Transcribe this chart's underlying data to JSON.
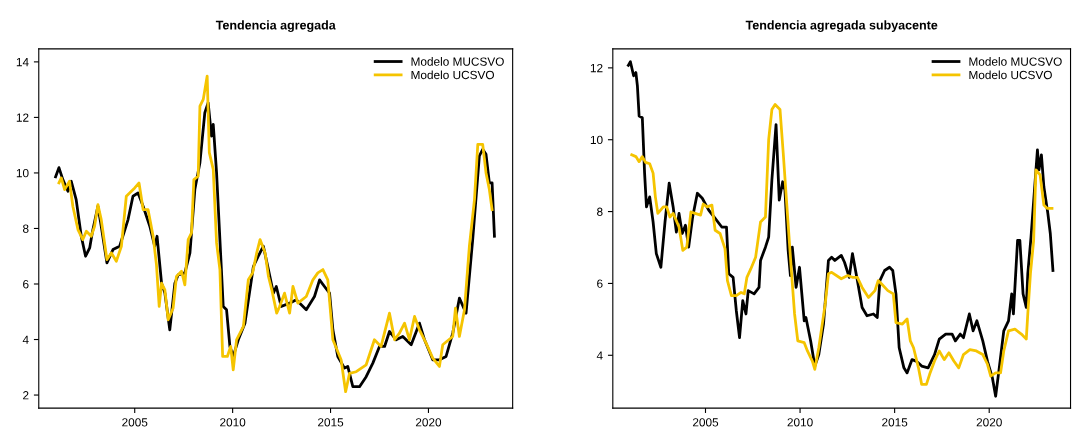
{
  "chart_data": [
    {
      "type": "line",
      "title": "Tendencia agregada",
      "xlim": [
        2000.1,
        2024.3
      ],
      "xticks": [
        2005,
        2010,
        2015,
        2020
      ],
      "ylim": [
        1.53,
        14.47
      ],
      "yticks": [
        2,
        4,
        6,
        8,
        10,
        12,
        14
      ],
      "grid": false,
      "legend": "top right",
      "series": [
        {
          "name": "Modelo MUCSVO",
          "color": "#000000",
          "x": [
            2000.96,
            2001.13,
            2001.33,
            2001.59,
            2001.76,
            2002.01,
            2002.27,
            2002.49,
            2002.7,
            2002.83,
            2003.12,
            2003.29,
            2003.58,
            2003.89,
            2004.23,
            2004.66,
            2004.91,
            2005.17,
            2005.43,
            2005.77,
            2006.02,
            2006.14,
            2006.37,
            2006.54,
            2006.79,
            2007.05,
            2007.22,
            2007.56,
            2007.82,
            2008.07,
            2008.33,
            2008.58,
            2008.75,
            2008.92,
            2009.01,
            2009.18,
            2009.35,
            2009.52,
            2009.69,
            2009.86,
            2010.03,
            2010.29,
            2010.63,
            2011.06,
            2011.31,
            2011.57,
            2011.83,
            2012.08,
            2012.23,
            2012.48,
            2012.91,
            2013.25,
            2013.76,
            2014.18,
            2014.44,
            2014.69,
            2014.95,
            2015.12,
            2015.37,
            2015.71,
            2015.88,
            2016.14,
            2016.48,
            2016.82,
            2017.16,
            2017.5,
            2017.76,
            2018.01,
            2018.35,
            2018.69,
            2019.12,
            2019.54,
            2019.8,
            2020.22,
            2020.56,
            2020.9,
            2021.24,
            2021.58,
            2021.92,
            2022.26,
            2022.6,
            2022.77,
            2022.94,
            2023.11,
            2023.25,
            2023.37
          ],
          "values": [
            9.86,
            10.19,
            9.76,
            9.34,
            9.7,
            9.04,
            7.72,
            7.0,
            7.3,
            7.84,
            8.8,
            8.08,
            6.76,
            7.24,
            7.36,
            8.32,
            9.16,
            9.28,
            8.8,
            8.08,
            7.36,
            7.72,
            6.03,
            5.67,
            4.35,
            6.03,
            6.33,
            6.4,
            7.12,
            9.4,
            10.37,
            12.17,
            12.53,
            11.33,
            11.75,
            10.0,
            7.6,
            5.19,
            5.07,
            3.75,
            3.39,
            3.99,
            4.59,
            6.63,
            7.0,
            7.36,
            6.51,
            5.67,
            5.91,
            5.19,
            5.31,
            5.43,
            5.07,
            5.55,
            6.15,
            5.91,
            5.67,
            4.35,
            3.39,
            2.97,
            3.03,
            2.3,
            2.3,
            2.66,
            3.15,
            3.75,
            3.75,
            4.29,
            3.99,
            4.11,
            3.81,
            4.59,
            3.99,
            3.27,
            3.27,
            3.39,
            4.23,
            5.49,
            4.95,
            7.6,
            10.61,
            10.85,
            10.67,
            9.64,
            9.64,
            7.72
          ]
        },
        {
          "name": "Modelo UCSVO",
          "color": "#f5c400",
          "x": [
            2001.13,
            2001.25,
            2001.42,
            2001.67,
            2001.84,
            2002.1,
            2002.35,
            2002.53,
            2002.78,
            2002.95,
            2003.12,
            2003.29,
            2003.58,
            2003.81,
            2004.06,
            2004.32,
            2004.57,
            2004.83,
            2005.0,
            2005.22,
            2005.43,
            2005.68,
            2005.94,
            2006.11,
            2006.25,
            2006.37,
            2006.54,
            2006.71,
            2006.96,
            2007.13,
            2007.39,
            2007.56,
            2007.73,
            2007.9,
            2008.02,
            2008.24,
            2008.33,
            2008.5,
            2008.7,
            2008.81,
            2009.01,
            2009.18,
            2009.35,
            2009.49,
            2009.73,
            2009.9,
            2010.03,
            2010.2,
            2010.55,
            2010.8,
            2011.02,
            2011.23,
            2011.4,
            2011.66,
            2011.83,
            2012.0,
            2012.25,
            2012.4,
            2012.65,
            2012.91,
            2013.08,
            2013.33,
            2013.76,
            2014.1,
            2014.35,
            2014.61,
            2014.86,
            2015.12,
            2015.54,
            2015.77,
            2015.97,
            2016.31,
            2016.82,
            2017.24,
            2017.58,
            2018.01,
            2018.27,
            2018.52,
            2018.78,
            2019.03,
            2019.29,
            2019.54,
            2019.88,
            2020.22,
            2020.56,
            2020.73,
            2021.24,
            2021.38,
            2021.58,
            2021.84,
            2022.09,
            2022.35,
            2022.52,
            2022.77,
            2022.94,
            2023.11,
            2023.25
          ],
          "values": [
            9.64,
            9.82,
            9.4,
            9.7,
            8.8,
            7.96,
            7.6,
            7.9,
            7.72,
            8.08,
            8.86,
            8.32,
            6.88,
            7.12,
            6.82,
            7.36,
            9.16,
            9.34,
            9.46,
            9.64,
            8.68,
            8.68,
            7.72,
            6.7,
            5.19,
            6.03,
            5.79,
            4.71,
            5.13,
            6.27,
            6.46,
            5.97,
            7.6,
            7.84,
            9.76,
            9.88,
            12.41,
            12.65,
            13.49,
            10.73,
            10.13,
            7.48,
            6.52,
            3.39,
            3.39,
            3.75,
            2.91,
            3.99,
            4.47,
            6.15,
            6.4,
            7.12,
            7.6,
            7.12,
            6.27,
            5.79,
            4.95,
            5.19,
            5.67,
            4.95,
            5.91,
            5.31,
            5.55,
            6.15,
            6.4,
            6.52,
            6.15,
            3.99,
            3.27,
            2.12,
            2.78,
            2.84,
            3.09,
            3.99,
            3.75,
            4.95,
            3.99,
            4.23,
            4.59,
            3.99,
            4.83,
            4.35,
            3.87,
            3.33,
            3.03,
            3.81,
            4.11,
            5.13,
            4.11,
            5.07,
            7.36,
            9.04,
            11.03,
            11.03,
            10.0,
            9.4,
            8.68
          ]
        }
      ]
    },
    {
      "type": "line",
      "title": "Tendencia agregada subyacente",
      "xlim": [
        2000.1,
        2024.3
      ],
      "xticks": [
        2005,
        2010,
        2015,
        2020
      ],
      "ylim": [
        2.53,
        12.53
      ],
      "yticks": [
        4,
        6,
        8,
        10,
        12
      ],
      "grid": false,
      "legend": "top right",
      "series": [
        {
          "name": "Modelo MUCSVO",
          "color": "#000000",
          "x": [
            2000.92,
            2001.03,
            2001.2,
            2001.32,
            2001.4,
            2001.49,
            2001.66,
            2001.78,
            2001.88,
            2002.05,
            2002.23,
            2002.4,
            2002.64,
            2002.86,
            2003.08,
            2003.29,
            2003.46,
            2003.6,
            2003.77,
            2003.94,
            2004.11,
            2004.32,
            2004.57,
            2004.83,
            2005.17,
            2005.51,
            2005.86,
            2006.11,
            2006.23,
            2006.46,
            2006.63,
            2006.8,
            2006.97,
            2007.14,
            2007.26,
            2007.57,
            2007.83,
            2007.91,
            2008.17,
            2008.34,
            2008.51,
            2008.73,
            2008.9,
            2009.08,
            2009.2,
            2009.37,
            2009.49,
            2009.59,
            2009.79,
            2009.97,
            2010.22,
            2010.31,
            2010.56,
            2010.78,
            2010.99,
            2011.24,
            2011.5,
            2011.67,
            2011.84,
            2012.18,
            2012.35,
            2012.6,
            2012.77,
            2013.03,
            2013.28,
            2013.54,
            2013.88,
            2014.08,
            2014.22,
            2014.47,
            2014.73,
            2014.9,
            2015.07,
            2015.24,
            2015.49,
            2015.66,
            2015.92,
            2016.17,
            2016.43,
            2016.77,
            2017.11,
            2017.36,
            2017.7,
            2018.04,
            2018.21,
            2018.47,
            2018.64,
            2018.95,
            2019.15,
            2019.35,
            2019.66,
            2019.91,
            2020.17,
            2020.34,
            2020.51,
            2020.77,
            2021.02,
            2021.19,
            2021.28,
            2021.5,
            2021.62,
            2021.79,
            2021.96,
            2022.04,
            2022.21,
            2022.38,
            2022.55,
            2022.63,
            2022.76,
            2022.89,
            2023.1,
            2023.23,
            2023.37
          ],
          "values": [
            12.07,
            12.17,
            11.78,
            11.87,
            11.5,
            10.66,
            10.61,
            9.07,
            8.13,
            8.41,
            7.71,
            6.83,
            6.45,
            7.71,
            8.79,
            8.13,
            7.43,
            7.95,
            7.39,
            7.62,
            7.01,
            7.85,
            8.51,
            8.37,
            8.04,
            7.81,
            7.57,
            7.57,
            6.27,
            6.17,
            5.24,
            4.49,
            5.52,
            5.15,
            5.8,
            5.71,
            5.89,
            6.64,
            7.01,
            7.29,
            8.88,
            10.42,
            8.32,
            8.83,
            8.6,
            6.92,
            6.22,
            7.01,
            5.89,
            6.45,
            4.96,
            5.05,
            4.4,
            3.7,
            4.02,
            4.87,
            6.64,
            6.73,
            6.64,
            6.78,
            6.59,
            6.17,
            6.83,
            6.08,
            5.33,
            5.1,
            5.15,
            5.05,
            6.08,
            6.36,
            6.45,
            6.36,
            5.71,
            4.21,
            3.65,
            3.51,
            3.88,
            3.83,
            3.7,
            3.65,
            4.02,
            4.45,
            4.59,
            4.59,
            4.4,
            4.59,
            4.49,
            5.15,
            4.68,
            4.96,
            4.4,
            3.83,
            3.37,
            2.86,
            3.56,
            4.68,
            4.96,
            5.71,
            5.15,
            7.2,
            7.2,
            5.71,
            5.33,
            6.27,
            7.29,
            8.51,
            9.72,
            9.16,
            9.58,
            8.69,
            7.95,
            7.39,
            6.36
          ]
        },
        {
          "name": "Modelo UCSVO",
          "color": "#f5c400",
          "x": [
            2001.1,
            2001.32,
            2001.49,
            2001.66,
            2001.83,
            2002.05,
            2002.23,
            2002.35,
            2002.48,
            2002.77,
            2002.95,
            2003.12,
            2003.29,
            2003.6,
            2003.8,
            2004.01,
            2004.23,
            2004.45,
            2004.74,
            2004.88,
            2005.09,
            2005.34,
            2005.51,
            2005.77,
            2006.03,
            2006.16,
            2006.37,
            2006.63,
            2006.88,
            2007.05,
            2007.19,
            2007.4,
            2007.65,
            2007.91,
            2008.17,
            2008.34,
            2008.51,
            2008.68,
            2008.94,
            2009.11,
            2009.33,
            2009.54,
            2009.71,
            2009.88,
            2010.22,
            2010.39,
            2010.65,
            2010.78,
            2010.99,
            2011.33,
            2011.5,
            2011.67,
            2012.18,
            2012.52,
            2012.77,
            2013.03,
            2013.28,
            2013.62,
            2013.96,
            2014.13,
            2014.3,
            2014.64,
            2014.93,
            2015.07,
            2015.41,
            2015.66,
            2015.83,
            2016.0,
            2016.26,
            2016.43,
            2016.68,
            2016.85,
            2017.11,
            2017.36,
            2017.62,
            2017.87,
            2018.13,
            2018.39,
            2018.64,
            2018.98,
            2019.32,
            2019.66,
            2019.91,
            2020.08,
            2020.34,
            2020.6,
            2020.77,
            2021.02,
            2021.36,
            2021.7,
            2021.96,
            2022.04,
            2022.18,
            2022.35,
            2022.47,
            2022.69,
            2022.89,
            2023.06,
            2023.32
          ],
          "values": [
            9.58,
            9.53,
            9.39,
            9.53,
            9.37,
            9.33,
            9.07,
            8.41,
            7.95,
            8.13,
            8.13,
            7.85,
            7.95,
            7.57,
            6.92,
            7.01,
            7.99,
            7.95,
            7.9,
            8.21,
            8.13,
            8.18,
            7.48,
            7.39,
            6.97,
            6.08,
            5.66,
            5.66,
            5.75,
            5.71,
            6.17,
            6.41,
            6.73,
            7.71,
            7.85,
            10.0,
            10.84,
            10.98,
            10.84,
            9.63,
            7.95,
            6.36,
            5.15,
            4.4,
            4.35,
            4.12,
            3.84,
            3.61,
            4.21,
            5.43,
            6.27,
            6.31,
            6.13,
            6.22,
            6.17,
            6.17,
            5.89,
            5.61,
            5.8,
            6.08,
            5.99,
            5.8,
            5.71,
            4.91,
            4.87,
            5.01,
            4.4,
            4.21,
            3.65,
            3.19,
            3.19,
            3.47,
            3.84,
            4.12,
            3.88,
            4.07,
            3.84,
            3.65,
            4.02,
            4.16,
            4.12,
            4.02,
            3.75,
            3.42,
            3.51,
            3.51,
            4.12,
            4.68,
            4.73,
            4.59,
            4.45,
            5.15,
            6.27,
            7.2,
            9.16,
            9.02,
            8.18,
            8.09,
            8.09
          ]
        }
      ]
    }
  ]
}
